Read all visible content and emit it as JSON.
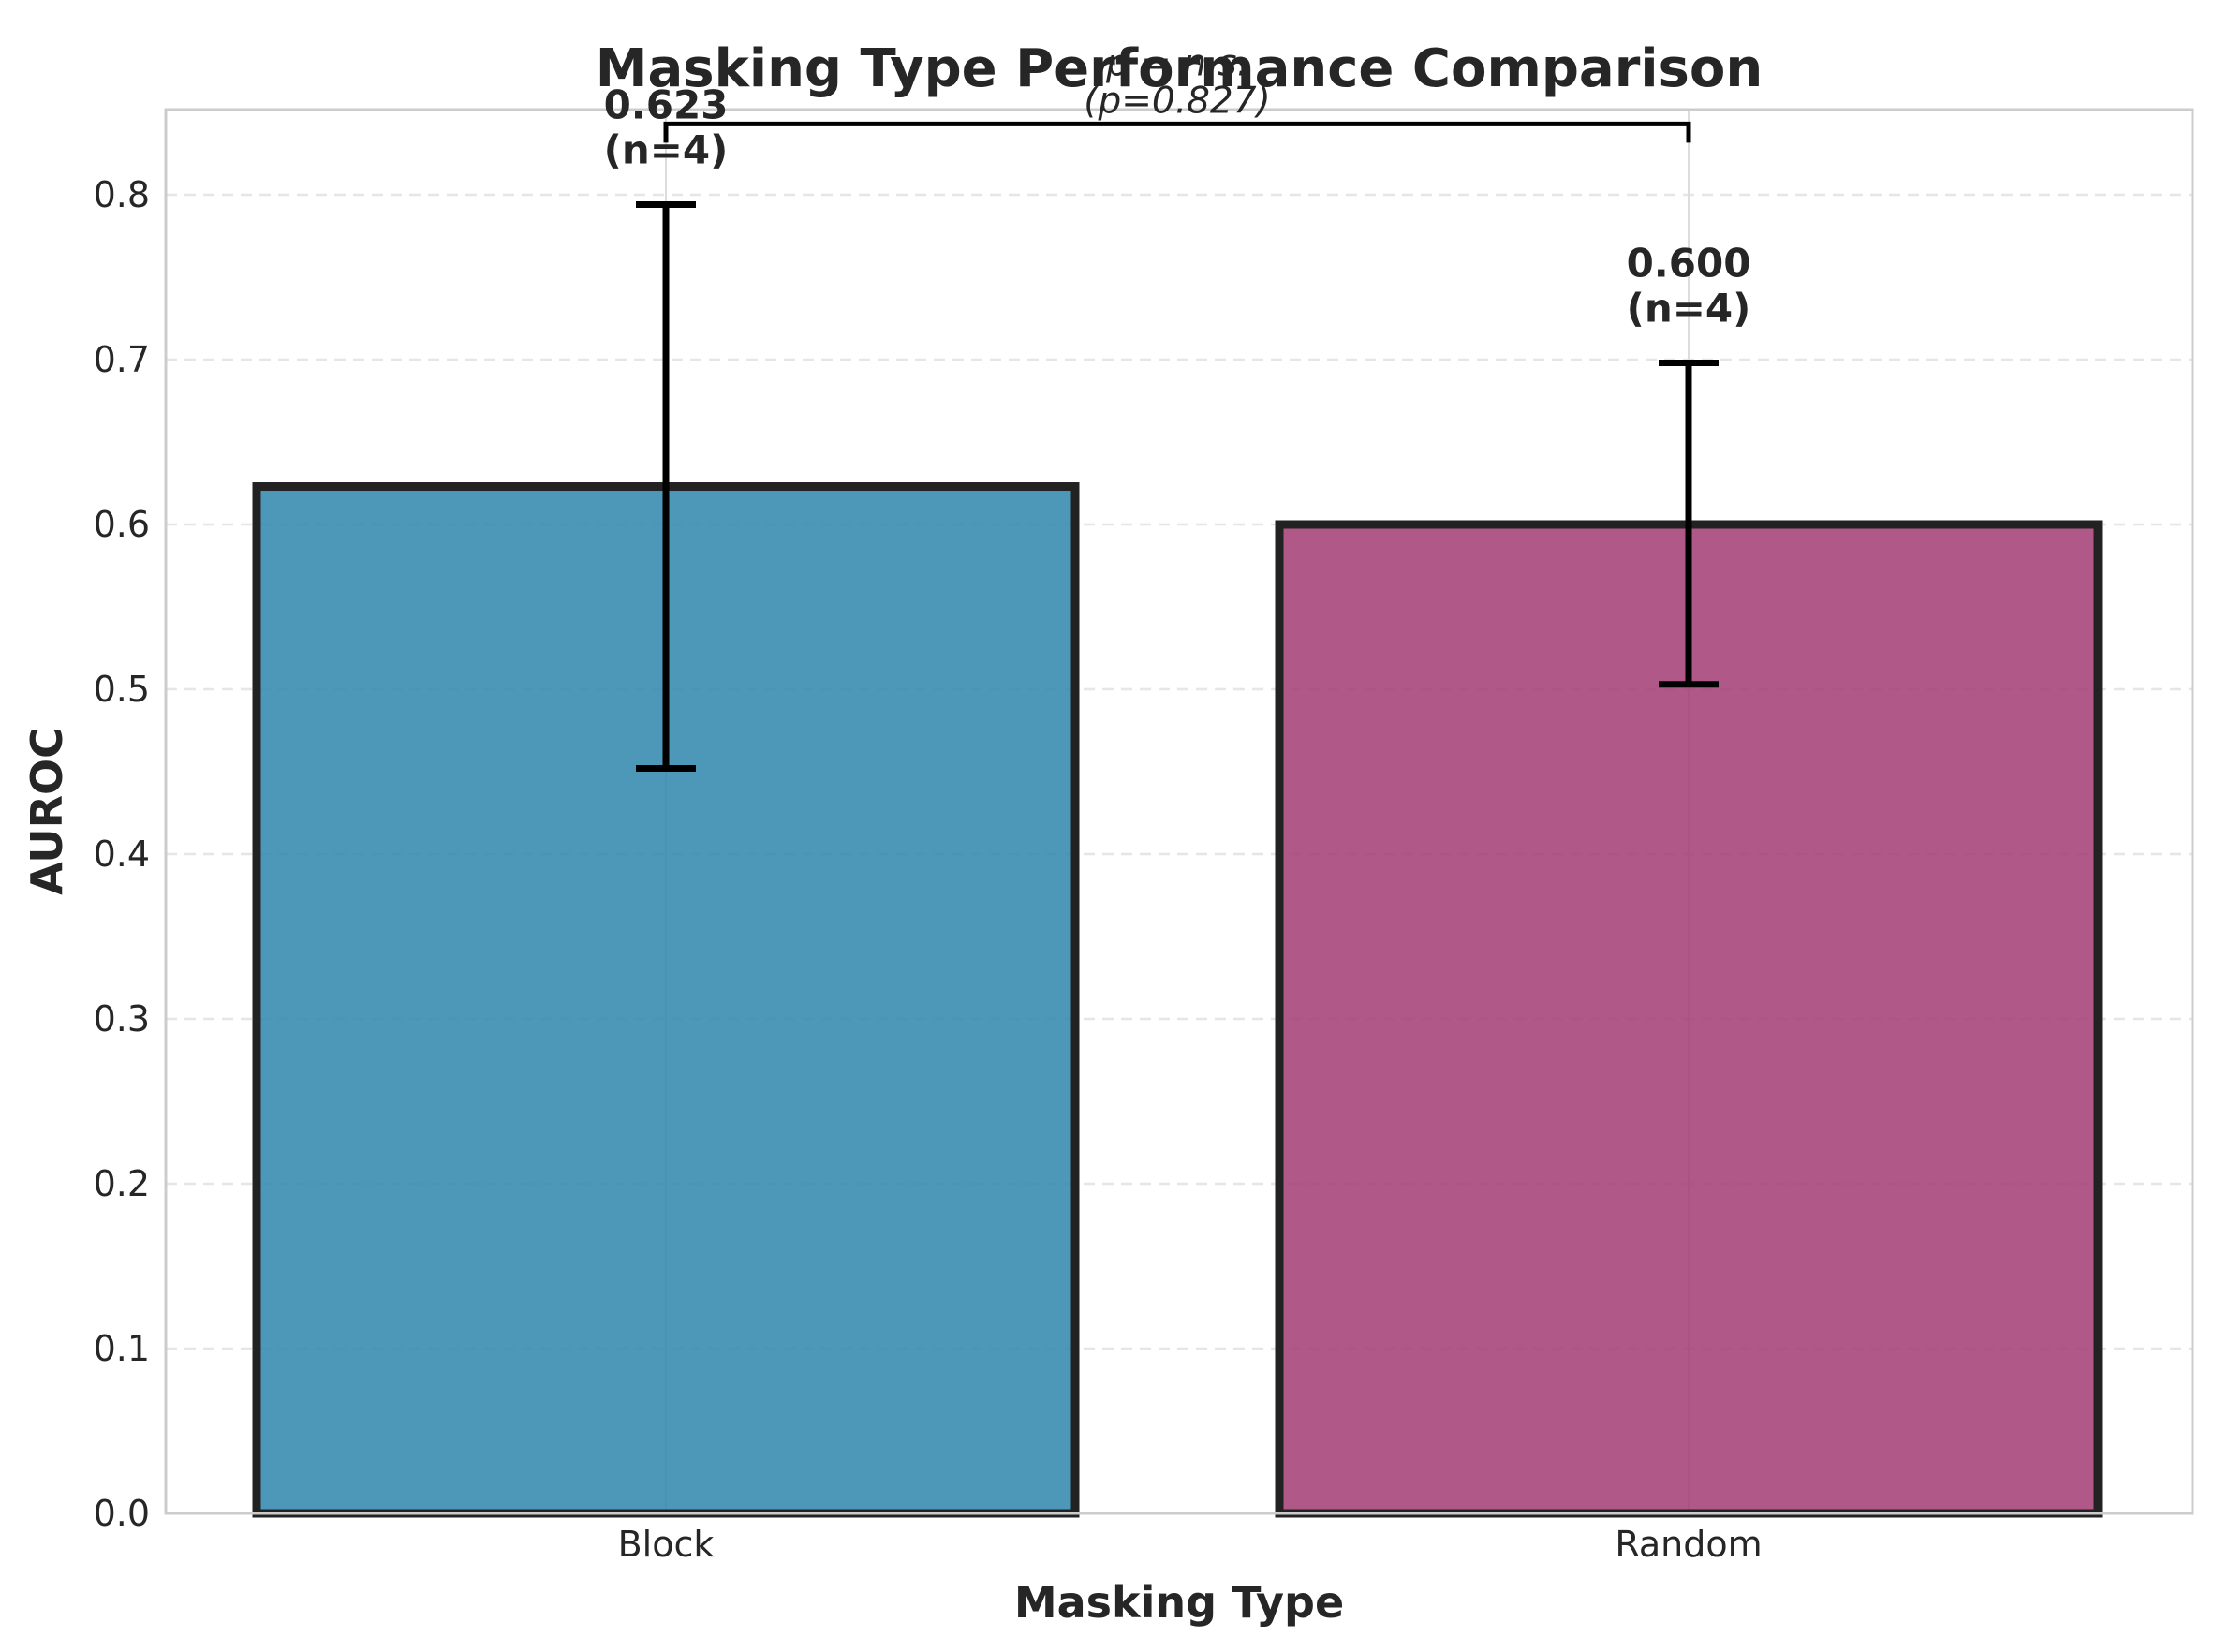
{
  "chart_data": {
    "type": "bar",
    "title": "Masking Type Performance Comparison",
    "xlabel": "Masking Type",
    "ylabel": "AUROC",
    "ylim": [
      0,
      0.85
    ],
    "yticks": [
      0.0,
      0.1,
      0.2,
      0.3,
      0.4,
      0.5,
      0.6,
      0.7,
      0.8
    ],
    "ytick_labels": [
      "0.0",
      "0.1",
      "0.2",
      "0.3",
      "0.4",
      "0.5",
      "0.6",
      "0.7",
      "0.8"
    ],
    "grid": true,
    "categories": [
      "Block",
      "Random"
    ],
    "values": [
      0.623,
      0.6
    ],
    "error_low": [
      0.452,
      0.503
    ],
    "error_high": [
      0.794,
      0.698
    ],
    "colors": [
      "#2E86AB",
      "#A23B72"
    ],
    "value_labels": [
      "0.623",
      "0.600"
    ],
    "n_labels": [
      "(n=4)",
      "(n=4)"
    ],
    "significance": {
      "between": [
        "Block",
        "Random"
      ],
      "line1": "p = n.s.",
      "line2": "(p=0.827)",
      "bracket_y": 0.843
    }
  }
}
